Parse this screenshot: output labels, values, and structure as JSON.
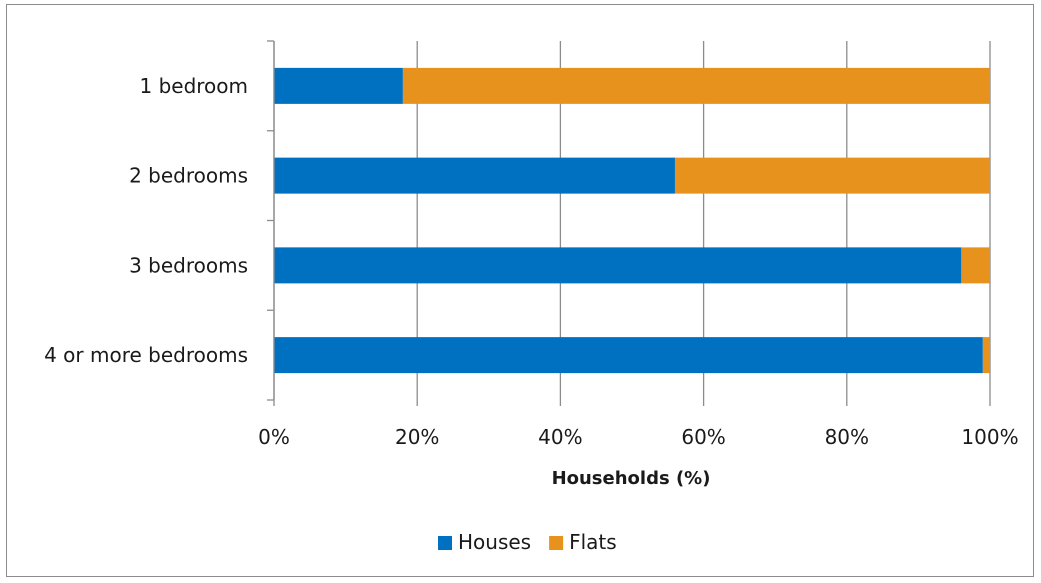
{
  "chart_data": {
    "type": "bar",
    "orientation": "horizontal",
    "stacked": "percent",
    "title": "",
    "xlabel": "Households (%)",
    "ylabel": "",
    "xlim": [
      0,
      100
    ],
    "x_ticks": [
      "0%",
      "20%",
      "40%",
      "60%",
      "80%",
      "100%"
    ],
    "categories": [
      "1 bedroom",
      "2 bedrooms",
      "3 bedrooms",
      "4 or more bedrooms"
    ],
    "series": [
      {
        "name": "Houses",
        "color": "#0070c0",
        "values": [
          18,
          56,
          96,
          99
        ]
      },
      {
        "name": "Flats",
        "color": "#e8921e",
        "values": [
          82,
          44,
          4,
          1
        ]
      }
    ],
    "grid": "vertical",
    "legend_position": "bottom"
  }
}
